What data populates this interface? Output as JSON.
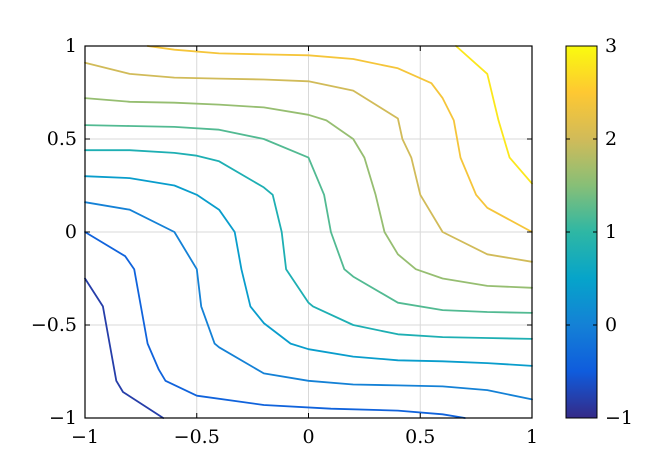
{
  "chart_data": {
    "type": "contour",
    "title": "",
    "xlabel": "",
    "ylabel": "",
    "xlim": [
      -1,
      1
    ],
    "ylim": [
      -1,
      1
    ],
    "grid": true,
    "x_ticks": [
      -1,
      -0.5,
      0,
      0.5,
      1
    ],
    "y_ticks": [
      -1,
      -0.5,
      0,
      0.5,
      1
    ],
    "x_tick_labels": [
      "−1",
      "−0.5",
      "0",
      "0.5",
      "1"
    ],
    "y_tick_labels": [
      "−1",
      "−0.5",
      "0",
      "0.5",
      "1"
    ],
    "colorbar": {
      "range": [
        -1,
        3
      ],
      "ticks": [
        -1,
        0,
        1,
        2,
        3
      ],
      "tick_labels": [
        "−1",
        "0",
        "1",
        "2",
        "3"
      ],
      "colormap": "parula",
      "colormap_stops": [
        "#352a87",
        "#0f5cdd",
        "#1481d6",
        "#06a4ca",
        "#2eb7a4",
        "#87bf77",
        "#d1bb59",
        "#fec832",
        "#f9fb0e"
      ]
    },
    "contours": [
      {
        "level": -0.8,
        "points": [
          [
            -1,
            -0.25
          ],
          [
            -0.92,
            -0.4
          ],
          [
            -0.89,
            -0.6
          ],
          [
            -0.86,
            -0.8
          ],
          [
            -0.83,
            -0.86
          ],
          [
            -0.65,
            -1
          ]
        ]
      },
      {
        "level": -0.4,
        "points": [
          [
            -1,
            0
          ],
          [
            -0.82,
            -0.13
          ],
          [
            -0.78,
            -0.2
          ],
          [
            -0.75,
            -0.4
          ],
          [
            -0.72,
            -0.6
          ],
          [
            -0.67,
            -0.74
          ],
          [
            -0.64,
            -0.8
          ],
          [
            -0.5,
            -0.88
          ],
          [
            -0.2,
            -0.93
          ],
          [
            0.1,
            -0.95
          ],
          [
            0.4,
            -0.96
          ],
          [
            0.6,
            -0.98
          ],
          [
            0.7,
            -1
          ]
        ]
      },
      {
        "level": 0.0,
        "points": [
          [
            -1,
            0.16
          ],
          [
            -0.8,
            0.12
          ],
          [
            -0.6,
            0.0
          ],
          [
            -0.5,
            -0.2
          ],
          [
            -0.48,
            -0.4
          ],
          [
            -0.42,
            -0.6
          ],
          [
            -0.4,
            -0.62
          ],
          [
            -0.2,
            -0.76
          ],
          [
            0.0,
            -0.8
          ],
          [
            0.2,
            -0.82
          ],
          [
            0.4,
            -0.825
          ],
          [
            0.6,
            -0.83
          ],
          [
            0.8,
            -0.85
          ],
          [
            1,
            -0.9
          ]
        ]
      },
      {
        "level": 0.4,
        "points": [
          [
            -1,
            0.3
          ],
          [
            -0.8,
            0.29
          ],
          [
            -0.6,
            0.25
          ],
          [
            -0.5,
            0.2
          ],
          [
            -0.4,
            0.12
          ],
          [
            -0.33,
            0.0
          ],
          [
            -0.3,
            -0.2
          ],
          [
            -0.26,
            -0.4
          ],
          [
            -0.2,
            -0.49
          ],
          [
            -0.08,
            -0.6
          ],
          [
            0.0,
            -0.63
          ],
          [
            0.2,
            -0.67
          ],
          [
            0.4,
            -0.69
          ],
          [
            0.6,
            -0.695
          ],
          [
            0.8,
            -0.705
          ],
          [
            1,
            -0.72
          ]
        ]
      },
      {
        "level": 0.8,
        "points": [
          [
            -1,
            0.44
          ],
          [
            -0.8,
            0.44
          ],
          [
            -0.6,
            0.425
          ],
          [
            -0.5,
            0.41
          ],
          [
            -0.4,
            0.38
          ],
          [
            -0.2,
            0.24
          ],
          [
            -0.16,
            0.2
          ],
          [
            -0.12,
            0.0
          ],
          [
            -0.1,
            -0.2
          ],
          [
            0.0,
            -0.38
          ],
          [
            0.02,
            -0.4
          ],
          [
            0.2,
            -0.5
          ],
          [
            0.4,
            -0.55
          ],
          [
            0.6,
            -0.565
          ],
          [
            0.8,
            -0.57
          ],
          [
            1,
            -0.575
          ]
        ]
      },
      {
        "level": 1.2,
        "points": [
          [
            -1,
            0.575
          ],
          [
            -0.8,
            0.57
          ],
          [
            -0.6,
            0.565
          ],
          [
            -0.4,
            0.55
          ],
          [
            -0.2,
            0.5
          ],
          [
            0.0,
            0.4
          ],
          [
            0.07,
            0.2
          ],
          [
            0.1,
            0.0
          ],
          [
            0.16,
            -0.2
          ],
          [
            0.2,
            -0.24
          ],
          [
            0.4,
            -0.38
          ],
          [
            0.6,
            -0.42
          ],
          [
            0.8,
            -0.43
          ],
          [
            1,
            -0.435
          ]
        ]
      },
      {
        "level": 1.6,
        "points": [
          [
            -1,
            0.72
          ],
          [
            -0.8,
            0.7
          ],
          [
            -0.6,
            0.695
          ],
          [
            -0.4,
            0.685
          ],
          [
            -0.2,
            0.67
          ],
          [
            0.0,
            0.63
          ],
          [
            0.08,
            0.6
          ],
          [
            0.2,
            0.5
          ],
          [
            0.25,
            0.4
          ],
          [
            0.3,
            0.2
          ],
          [
            0.34,
            0.0
          ],
          [
            0.4,
            -0.12
          ],
          [
            0.48,
            -0.2
          ],
          [
            0.6,
            -0.25
          ],
          [
            0.8,
            -0.29
          ],
          [
            1,
            -0.3
          ]
        ]
      },
      {
        "level": 2.0,
        "points": [
          [
            -1,
            0.91
          ],
          [
            -0.8,
            0.85
          ],
          [
            -0.6,
            0.83
          ],
          [
            -0.4,
            0.825
          ],
          [
            -0.2,
            0.82
          ],
          [
            0.0,
            0.81
          ],
          [
            0.2,
            0.76
          ],
          [
            0.4,
            0.61
          ],
          [
            0.42,
            0.5
          ],
          [
            0.46,
            0.4
          ],
          [
            0.5,
            0.2
          ],
          [
            0.6,
            0.0
          ],
          [
            0.8,
            -0.12
          ],
          [
            1,
            -0.16
          ]
        ]
      },
      {
        "level": 2.4,
        "points": [
          [
            -0.72,
            1
          ],
          [
            -0.6,
            0.98
          ],
          [
            -0.4,
            0.96
          ],
          [
            -0.2,
            0.955
          ],
          [
            0.0,
            0.95
          ],
          [
            0.2,
            0.93
          ],
          [
            0.4,
            0.88
          ],
          [
            0.55,
            0.8
          ],
          [
            0.6,
            0.72
          ],
          [
            0.65,
            0.6
          ],
          [
            0.68,
            0.4
          ],
          [
            0.75,
            0.2
          ],
          [
            0.8,
            0.13
          ],
          [
            1,
            0.0
          ]
        ]
      },
      {
        "level": 2.8,
        "points": [
          [
            0.66,
            1
          ],
          [
            0.8,
            0.85
          ],
          [
            0.85,
            0.6
          ],
          [
            0.9,
            0.4
          ],
          [
            1,
            0.26
          ]
        ]
      }
    ]
  }
}
